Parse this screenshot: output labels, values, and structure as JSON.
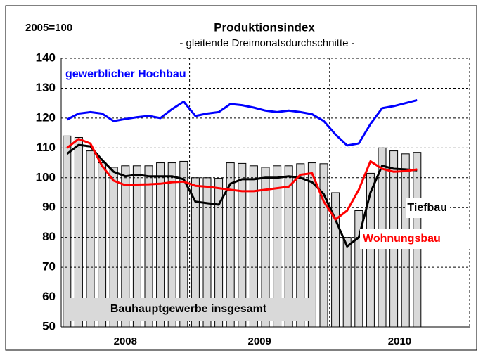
{
  "chart_data": {
    "type": "combo",
    "title": "Produktionsindex",
    "subtitle": "- gleitende Dreimonatsdurchschnitte -",
    "note": "2005=100",
    "categories": [
      null,
      null,
      null,
      null,
      null,
      null,
      null,
      null,
      null,
      null,
      null,
      null,
      null,
      null,
      null,
      null,
      null,
      null,
      null,
      null,
      null,
      null,
      null,
      null,
      null,
      null,
      null,
      null,
      null,
      null,
      null,
      null,
      null,
      null,
      null
    ],
    "x_groups": [
      {
        "label": "2008",
        "span": 11
      },
      {
        "label": "2009",
        "span": 12
      },
      {
        "label": "2010",
        "span": 12
      }
    ],
    "ylim": [
      50,
      140
    ],
    "yticks": [
      50,
      60,
      70,
      80,
      90,
      100,
      110,
      120,
      130,
      140
    ],
    "grid": true,
    "series": [
      {
        "name": "Bauhauptgewerbe insgesamt",
        "type": "bar",
        "color": "#d9d9d9",
        "values": [
          114,
          113.5,
          109,
          105,
          103.5,
          104,
          104,
          104,
          105,
          105,
          105.5,
          100,
          100,
          99.8,
          105,
          104.8,
          104,
          103.5,
          104,
          104,
          104.7,
          105,
          104.7,
          95,
          80,
          89,
          101.5,
          110,
          109,
          108,
          108.5,
          null,
          null,
          null,
          null
        ]
      },
      {
        "name": "gewerblicher Hochbau",
        "type": "line",
        "color": "#0000ff",
        "values": [
          119.5,
          121.5,
          122,
          121.5,
          119,
          119.7,
          120.3,
          120.7,
          120,
          123,
          125.5,
          120.7,
          121.5,
          122,
          124.7,
          124.3,
          123.5,
          122.5,
          122,
          122.5,
          122,
          121.3,
          119,
          114.5,
          110.8,
          111.5,
          118,
          123.3,
          124,
          125,
          126,
          null,
          null,
          null,
          null
        ]
      },
      {
        "name": "Tiefbau",
        "type": "line",
        "color": "#000000",
        "values": [
          108,
          111,
          110.5,
          106,
          102,
          100.5,
          101,
          100.5,
          100.5,
          100.5,
          99.5,
          92,
          91.5,
          91,
          98,
          99.5,
          99.5,
          100,
          100,
          100.5,
          100,
          98.5,
          94.5,
          86,
          77,
          80,
          95,
          104,
          103,
          102.8,
          102.5,
          null,
          null,
          null,
          null
        ]
      },
      {
        "name": "Wohnungsbau",
        "type": "line",
        "color": "#ff0000",
        "values": [
          110,
          113,
          111.5,
          104,
          99,
          97.5,
          97.7,
          97.8,
          98,
          98.5,
          98.7,
          97.3,
          97,
          96.5,
          96,
          95.5,
          95.5,
          96,
          96.5,
          97,
          101,
          101.5,
          92,
          86,
          89,
          96,
          105.5,
          103,
          102,
          102.2,
          102.8,
          null,
          null,
          null,
          null
        ]
      }
    ]
  }
}
